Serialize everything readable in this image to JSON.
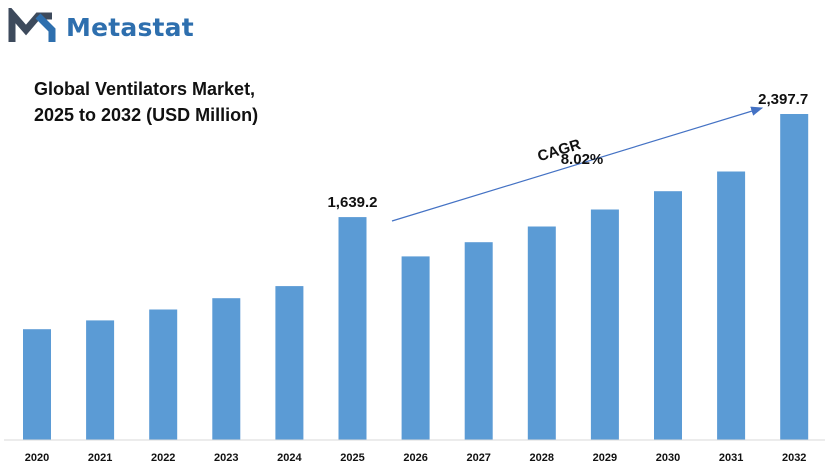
{
  "brand": {
    "name": "Metastat"
  },
  "title": {
    "line1": "Global Ventilators Market,",
    "line2": "2025 to 2032 (USD Million)"
  },
  "cagr": {
    "label": "CAGR",
    "value": "8.02%"
  },
  "colors": {
    "bar": "#5b9bd5",
    "brand": "#2e6fae",
    "logo_dark": "#3d4a5c",
    "arrow": "#4472c4"
  },
  "chart_data": {
    "type": "bar",
    "title": "Global Ventilators Market, 2025 to 2032 (USD Million)",
    "categories": [
      "2020",
      "2021",
      "2022",
      "2023",
      "2024",
      "2025",
      "2026",
      "2027",
      "2028",
      "2029",
      "2030",
      "2031",
      "2032"
    ],
    "values": [
      815,
      880,
      960,
      1043,
      1132,
      1639.2,
      1350,
      1455,
      1570,
      1695,
      1830,
      1975,
      2397.7
    ],
    "data_labels": [
      {
        "category": "2025",
        "text": "1,639.2"
      },
      {
        "category": "2032",
        "text": "2,397.7"
      }
    ],
    "xlabel": "",
    "ylabel": "",
    "grid": false,
    "legend": "none"
  }
}
